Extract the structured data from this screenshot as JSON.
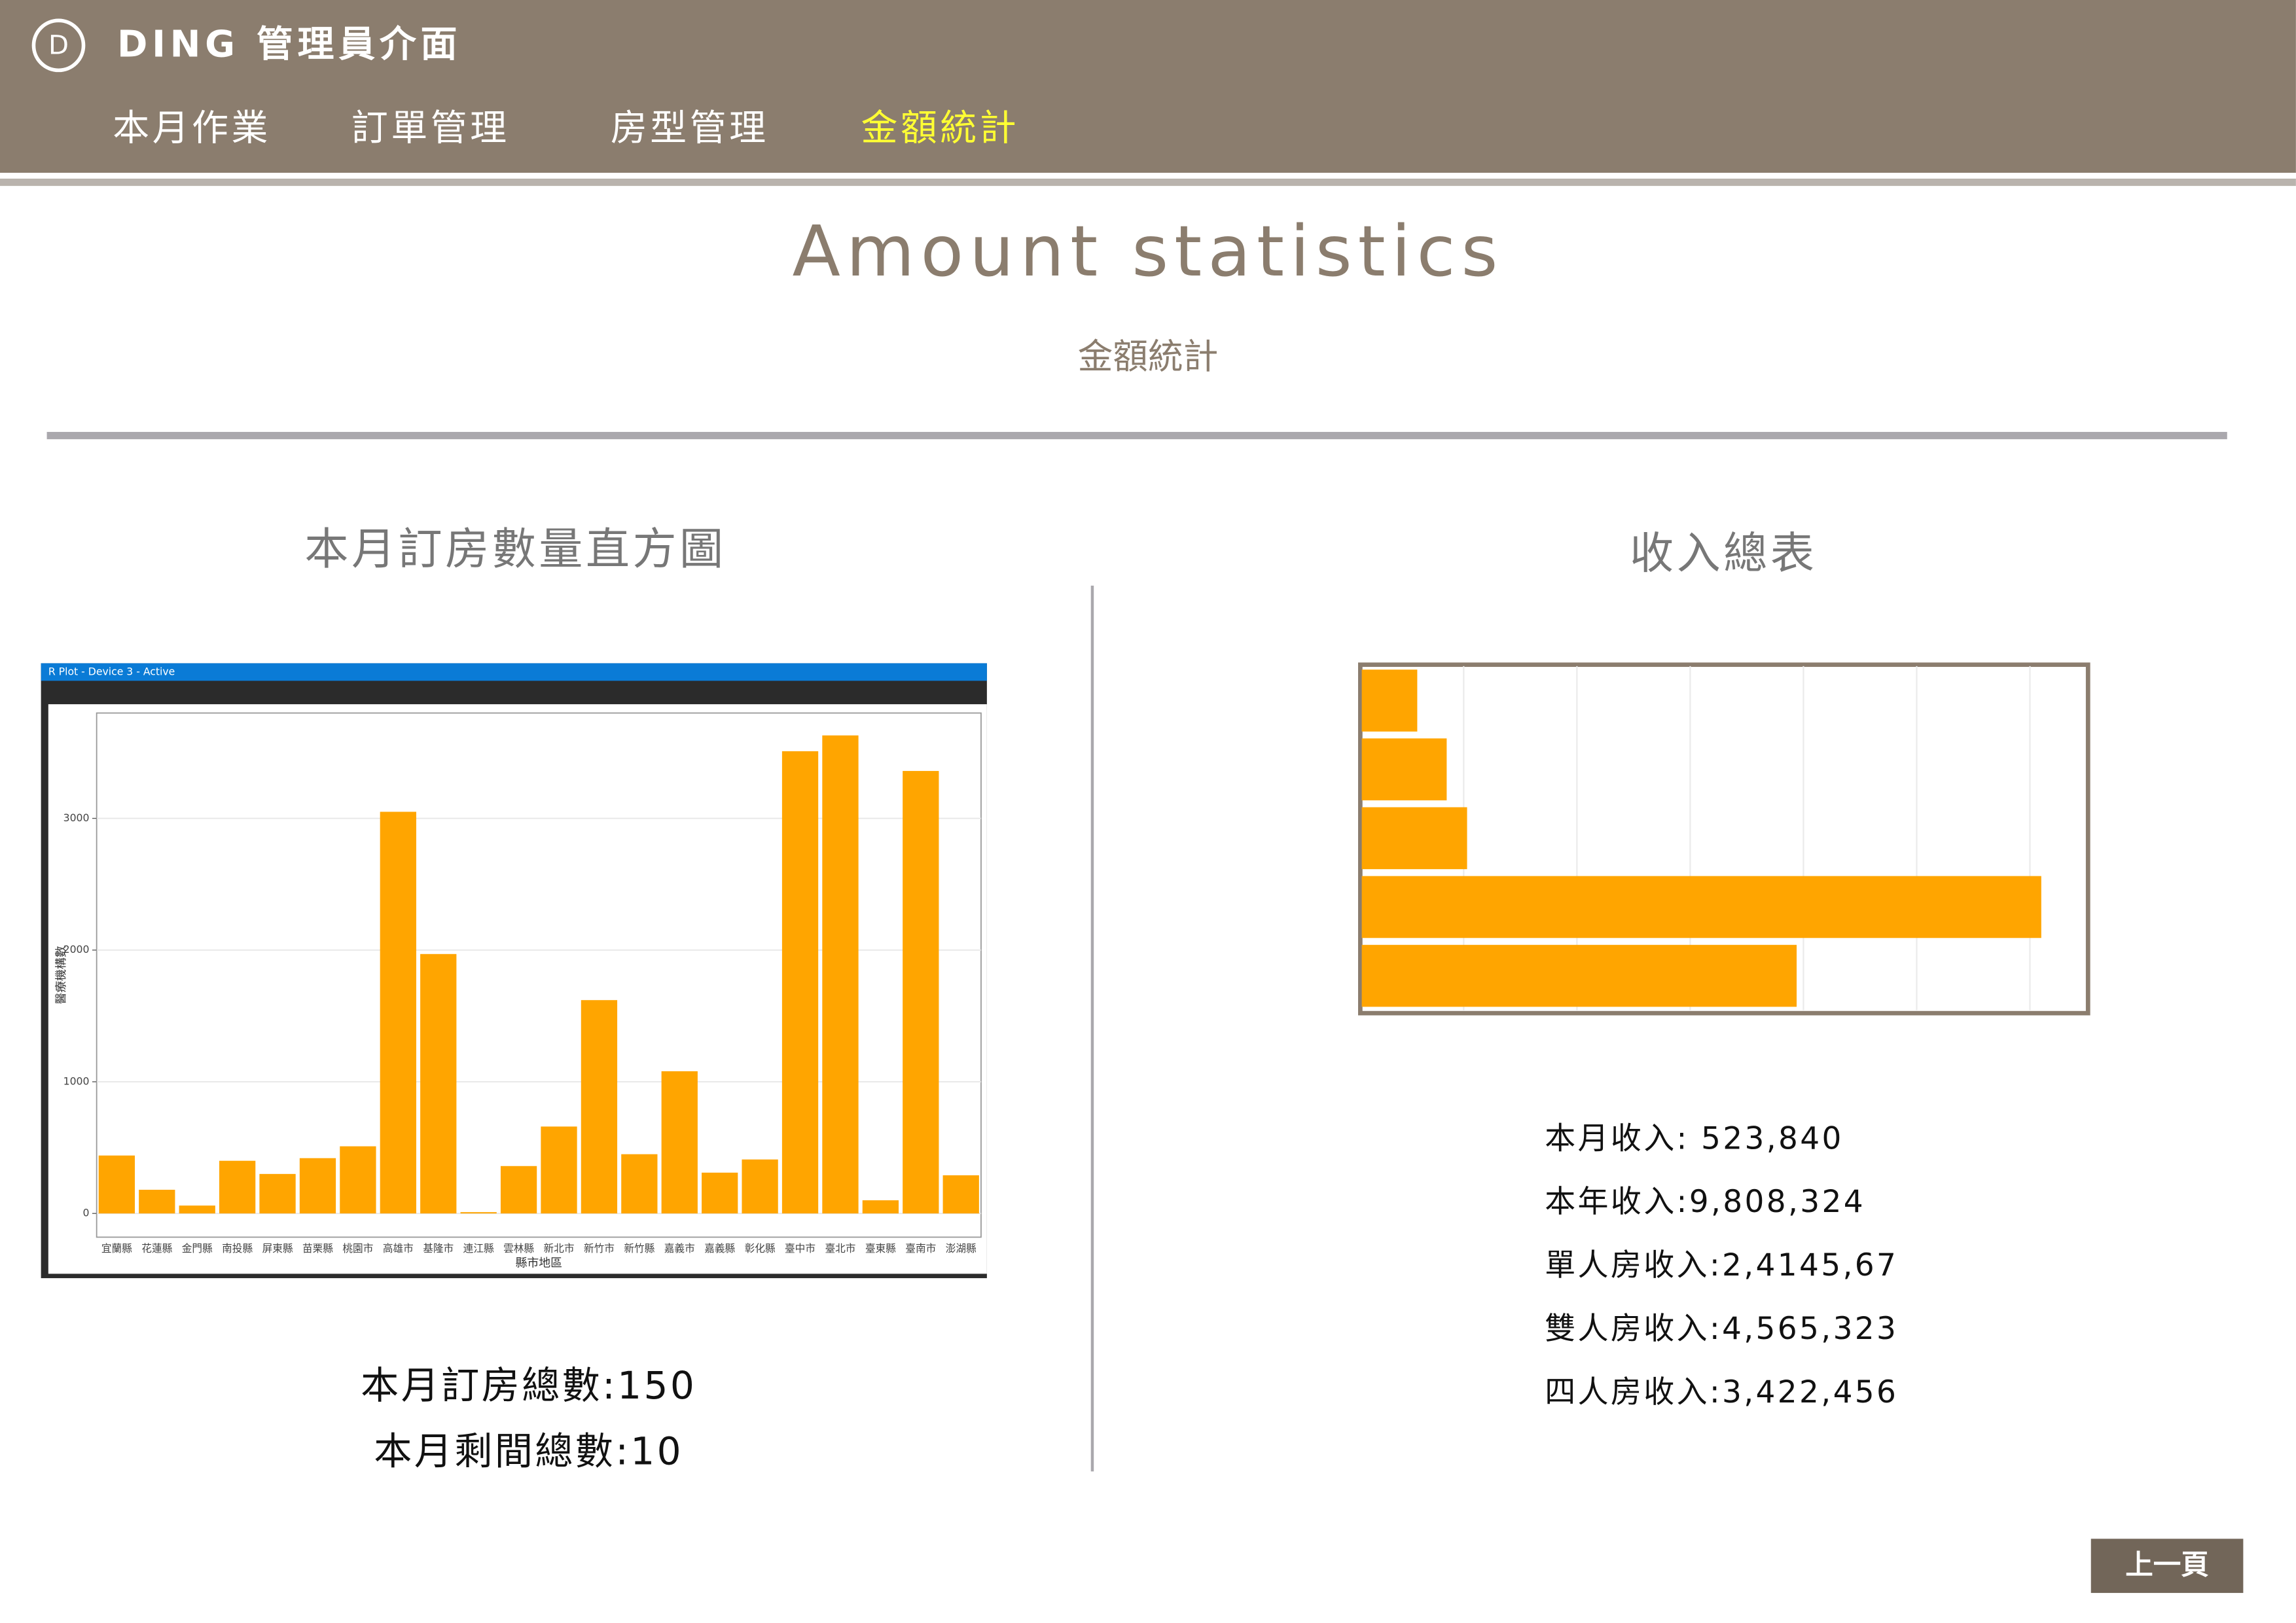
{
  "header": {
    "logo": "D",
    "title": "DING 管理員介面",
    "nav": [
      "本月作業",
      "訂單管理",
      "房型管理",
      "金額統計"
    ],
    "active_nav": 3
  },
  "page": {
    "title": "Amount statistics",
    "subtitle": "金額統計"
  },
  "left": {
    "heading": "本月訂房數量直方圖",
    "stats": [
      "本月訂房總數:150",
      "本月剩間總數:10"
    ]
  },
  "right": {
    "heading": "收入總表",
    "stats": [
      "本月收入: 523,840",
      "本年收入:9,808,324",
      "單人房收入:2,4145,67",
      "雙人房收入:4,565,323",
      "四人房收入:3,422,456"
    ]
  },
  "button": "上一頁",
  "chart_data": [
    {
      "type": "bar",
      "window_title": "R Plot - Device 3 - Active",
      "categories": [
        "宜蘭縣",
        "花蓮縣",
        "金門縣",
        "南投縣",
        "屏東縣",
        "苗栗縣",
        "桃園市",
        "高雄市",
        "基隆市",
        "連江縣",
        "雲林縣",
        "新北市",
        "新竹市",
        "新竹縣",
        "嘉義市",
        "嘉義縣",
        "彰化縣",
        "臺中市",
        "臺北市",
        "臺東縣",
        "臺南市",
        "澎湖縣"
      ],
      "values": [
        440,
        180,
        60,
        400,
        300,
        420,
        510,
        3050,
        1970,
        10,
        360,
        660,
        1620,
        450,
        1080,
        310,
        410,
        3510,
        3630,
        100,
        3360,
        290
      ],
      "color": "#ffa500",
      "ylim": [
        -180,
        3800
      ],
      "yticks": [
        0,
        1000,
        2000,
        3000
      ],
      "x_label": "縣市地區",
      "y_label": "醫療機構數",
      "grid": true
    },
    {
      "type": "barh",
      "categories": [
        null,
        null,
        null,
        null,
        null
      ],
      "values": [
        49,
        75,
        93,
        600,
        384
      ],
      "color": "#ffa500",
      "xlim": [
        0,
        640
      ],
      "xticks": [
        90,
        190,
        290,
        390,
        490,
        590
      ],
      "grid": true
    }
  ]
}
